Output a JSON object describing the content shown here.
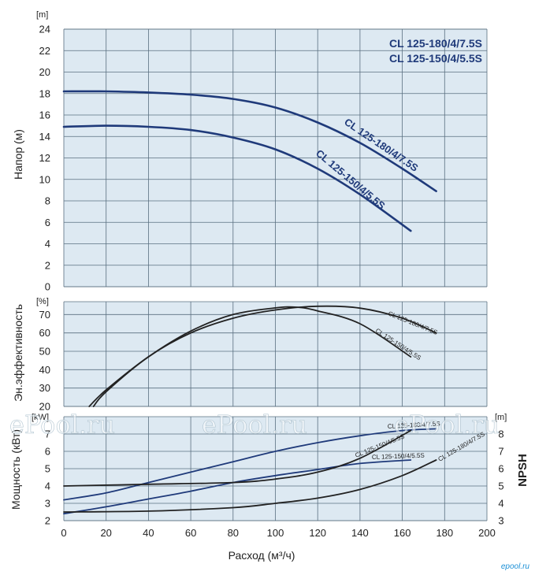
{
  "chart_data": [
    {
      "type": "line",
      "title_lines": [
        "CL 125-180/4/7.5S",
        "CL 125-150/4/5.5S"
      ],
      "ylabel": "Напор (м)",
      "yunit": "[m]",
      "xlim": [
        0,
        200
      ],
      "ylim": [
        0,
        24
      ],
      "yticks": [
        0,
        2,
        4,
        6,
        8,
        10,
        12,
        14,
        16,
        18,
        20,
        22,
        24
      ],
      "grid": true,
      "series": [
        {
          "name": "CL 125-180/4/7.5S",
          "color": "#1f3a7a",
          "x": [
            0,
            20,
            40,
            60,
            80,
            100,
            120,
            140,
            160,
            176
          ],
          "y": [
            18.2,
            18.2,
            18.1,
            17.9,
            17.5,
            16.7,
            15.3,
            13.4,
            11.0,
            8.9
          ]
        },
        {
          "name": "CL 125-150/4/5.5S",
          "color": "#1f3a7a",
          "x": [
            0,
            20,
            40,
            60,
            80,
            100,
            120,
            140,
            164
          ],
          "y": [
            14.9,
            15.0,
            14.9,
            14.6,
            13.9,
            12.8,
            11.0,
            8.6,
            5.2
          ]
        }
      ]
    },
    {
      "type": "line",
      "ylabel": "Эн.эффективность",
      "yunit": "[%]",
      "xlim": [
        0,
        200
      ],
      "ylim": [
        20,
        77
      ],
      "yticks": [
        20,
        30,
        40,
        50,
        60,
        70
      ],
      "grid": true,
      "series": [
        {
          "name": "CL 125-180/4/7.5S",
          "color": "#222222",
          "x": [
            14,
            20,
            40,
            60,
            80,
            100,
            120,
            140,
            160,
            176
          ],
          "y": [
            20,
            28,
            47,
            60,
            68,
            72.5,
            74.5,
            73.5,
            68,
            60
          ]
        },
        {
          "name": "CL 125-150/4/5.5S",
          "color": "#222222",
          "x": [
            12,
            20,
            40,
            60,
            80,
            100,
            110,
            120,
            140,
            164
          ],
          "y": [
            20,
            29,
            47,
            61,
            70,
            73.6,
            74,
            72,
            65,
            47
          ]
        }
      ]
    },
    {
      "type": "line",
      "ylabel": "Мощность (кВт)",
      "yunit": "[kW]",
      "y2label": "NPSH",
      "y2unit": "[m]",
      "xlabel": "Расход (м³/ч)",
      "xlim": [
        0,
        200
      ],
      "ylim": [
        2,
        8
      ],
      "y2lim": [
        3,
        9
      ],
      "yticks": [
        2,
        3,
        4,
        5,
        6,
        7
      ],
      "y2ticks": [
        3,
        4,
        5,
        6,
        7,
        8
      ],
      "xticks": [
        0,
        20,
        40,
        60,
        80,
        100,
        120,
        140,
        160,
        180,
        200
      ],
      "grid": true,
      "series": [
        {
          "name": "CL 125-180/4/7.5S",
          "kind": "power",
          "color": "#1f3a7a",
          "x": [
            0,
            20,
            40,
            60,
            80,
            100,
            120,
            140,
            160,
            176
          ],
          "y": [
            3.2,
            3.6,
            4.2,
            4.8,
            5.4,
            6.0,
            6.5,
            6.9,
            7.2,
            7.3
          ]
        },
        {
          "name": "CL 125-150/4/5.5S",
          "kind": "power",
          "color": "#1f3a7a",
          "x": [
            0,
            20,
            40,
            60,
            80,
            100,
            120,
            140,
            164
          ],
          "y": [
            2.4,
            2.8,
            3.25,
            3.7,
            4.2,
            4.6,
            4.95,
            5.3,
            5.5
          ]
        },
        {
          "name": "CL 125-150/4/5.5S",
          "kind": "npsh",
          "color": "#222222",
          "x": [
            0,
            40,
            80,
            100,
            120,
            140,
            164
          ],
          "y": [
            5.0,
            5.1,
            5.2,
            5.4,
            5.8,
            6.6,
            8.2
          ]
        },
        {
          "name": "CL 125-180/4/7.5S",
          "kind": "npsh",
          "color": "#222222",
          "x": [
            0,
            40,
            80,
            100,
            120,
            140,
            160,
            176
          ],
          "y": [
            3.5,
            3.55,
            3.75,
            4.0,
            4.3,
            4.8,
            5.6,
            6.5
          ]
        }
      ]
    }
  ],
  "watermarks": [
    "ePool.ru",
    "ePool.ru",
    "ePool.ru"
  ],
  "logo_text": "epool.ru",
  "colors": {
    "plot_bg": "#dde9f2",
    "grid": "#5a6f80",
    "curve_blue": "#1f3a7a",
    "curve_black": "#222222"
  }
}
